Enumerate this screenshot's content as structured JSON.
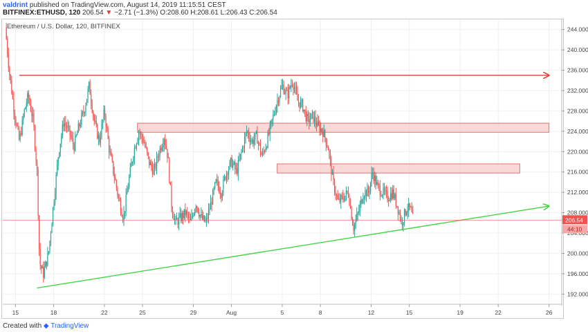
{
  "header": {
    "author": "valdrint",
    "published": "published on TradingView.com, August 14, 2019 11:15:51 CEST",
    "symbol": "BITFINEX:ETHUSD, 120",
    "last": "206.54",
    "change_arrow": "▼",
    "change": "−2.71 (−1.3%)",
    "ohlc_o": "O:208.60",
    "ohlc_h": "H:208.61",
    "ohlc_l": "L:206.43",
    "ohlc_c": "C:206.54"
  },
  "legend": "Ethereum / U.S. Dollar, 120, BITFINEX",
  "footer": {
    "created_with": "Created with",
    "brand": "TradingView"
  },
  "chart_data": {
    "type": "candlestick",
    "title": "Ethereum / U.S. Dollar, 120, BITFINEX",
    "xlabel": "",
    "ylabel": "",
    "y_ticks": [
      192.0,
      196.0,
      200.0,
      204.0,
      208.0,
      212.0,
      216.0,
      220.0,
      224.0,
      228.0,
      232.0,
      236.0,
      240.0,
      244.0
    ],
    "ylim": [
      190.0,
      246.0
    ],
    "x_tick_labels": [
      "15",
      "18",
      "22",
      "25",
      "29",
      "Aug",
      "5",
      "8",
      "12",
      "15",
      "19",
      "22",
      "26"
    ],
    "x_tick_days": [
      15,
      18,
      22,
      25,
      29,
      32,
      36,
      39,
      43,
      46,
      50,
      53,
      57
    ],
    "x_range_days": [
      14,
      58
    ],
    "x_units": "days since July 1, 2019",
    "last_price": 206.54,
    "last_price_label": "206.54",
    "countdown_label": "44:10",
    "colors": {
      "up": "#26a69a",
      "down": "#ef5350",
      "resistance": "#e53935",
      "support": "#4caf50",
      "zone_fill": "#f8c8c8"
    },
    "price_path": [
      [
        14.2,
        244.5
      ],
      [
        14.5,
        236.0
      ],
      [
        14.9,
        228.0
      ],
      [
        15.3,
        222.0
      ],
      [
        15.7,
        228.0
      ],
      [
        16.0,
        231.0
      ],
      [
        16.4,
        226.0
      ],
      [
        16.7,
        216.0
      ],
      [
        16.9,
        198.0
      ],
      [
        17.2,
        196.0
      ],
      [
        17.6,
        200.0
      ],
      [
        18.0,
        210.0
      ],
      [
        18.4,
        220.0
      ],
      [
        18.8,
        226.0
      ],
      [
        19.2,
        224.0
      ],
      [
        19.6,
        221.0
      ],
      [
        20.0,
        225.0
      ],
      [
        20.4,
        228.0
      ],
      [
        20.8,
        233.0
      ],
      [
        21.2,
        226.0
      ],
      [
        21.6,
        222.0
      ],
      [
        22.0,
        228.0
      ],
      [
        22.4,
        220.0
      ],
      [
        22.8,
        215.0
      ],
      [
        23.1,
        211.0
      ],
      [
        23.5,
        207.0
      ],
      [
        23.9,
        214.0
      ],
      [
        24.3,
        220.0
      ],
      [
        24.7,
        224.0
      ],
      [
        25.1,
        222.0
      ],
      [
        25.5,
        218.0
      ],
      [
        25.9,
        216.0
      ],
      [
        26.3,
        220.0
      ],
      [
        26.7,
        223.0
      ],
      [
        27.0,
        219.0
      ],
      [
        27.3,
        209.0
      ],
      [
        27.6,
        206.0
      ],
      [
        28.0,
        207.0
      ],
      [
        28.4,
        208.0
      ],
      [
        28.8,
        206.0
      ],
      [
        29.2,
        210.0
      ],
      [
        29.6,
        207.0
      ],
      [
        30.0,
        206.0
      ],
      [
        30.4,
        210.0
      ],
      [
        30.8,
        214.0
      ],
      [
        31.2,
        212.0
      ],
      [
        31.6,
        216.0
      ],
      [
        32.0,
        218.0
      ],
      [
        32.4,
        216.0
      ],
      [
        32.8,
        220.0
      ],
      [
        33.2,
        224.0
      ],
      [
        33.6,
        222.0
      ],
      [
        34.0,
        223.0
      ],
      [
        34.4,
        219.0
      ],
      [
        34.8,
        222.0
      ],
      [
        35.2,
        226.0
      ],
      [
        35.6,
        230.0
      ],
      [
        36.0,
        233.0
      ],
      [
        36.4,
        231.0
      ],
      [
        36.8,
        234.0
      ],
      [
        37.2,
        230.0
      ],
      [
        37.6,
        229.0
      ],
      [
        38.0,
        226.0
      ],
      [
        38.4,
        227.0
      ],
      [
        38.8,
        225.0
      ],
      [
        39.2,
        224.0
      ],
      [
        39.6,
        221.0
      ],
      [
        40.0,
        214.0
      ],
      [
        40.4,
        210.0
      ],
      [
        40.8,
        211.0
      ],
      [
        41.2,
        212.0
      ],
      [
        41.6,
        205.0
      ],
      [
        42.0,
        208.0
      ],
      [
        42.4,
        212.0
      ],
      [
        42.8,
        212.0
      ],
      [
        43.1,
        216.0
      ],
      [
        43.5,
        213.0
      ],
      [
        43.9,
        212.0
      ],
      [
        44.3,
        211.0
      ],
      [
        44.7,
        212.0
      ],
      [
        45.1,
        209.0
      ],
      [
        45.4,
        206.0
      ],
      [
        45.8,
        209.0
      ],
      [
        46.1,
        208.6
      ],
      [
        46.3,
        206.54
      ]
    ],
    "lines": [
      {
        "name": "resistance",
        "type": "arrow",
        "start": [
          15.3,
          235.0
        ],
        "end": [
          57.0,
          235.0
        ]
      },
      {
        "name": "support",
        "type": "arrow",
        "start": [
          16.7,
          193.2
        ],
        "end": [
          57.0,
          209.3
        ]
      }
    ],
    "zones": [
      {
        "x_start": 24.6,
        "x_end": 57.0,
        "y_low": 223.8,
        "y_high": 225.6
      },
      {
        "x_start": 35.6,
        "x_end": 54.7,
        "y_low": 215.8,
        "y_high": 217.6
      }
    ],
    "price_line": 206.54
  }
}
